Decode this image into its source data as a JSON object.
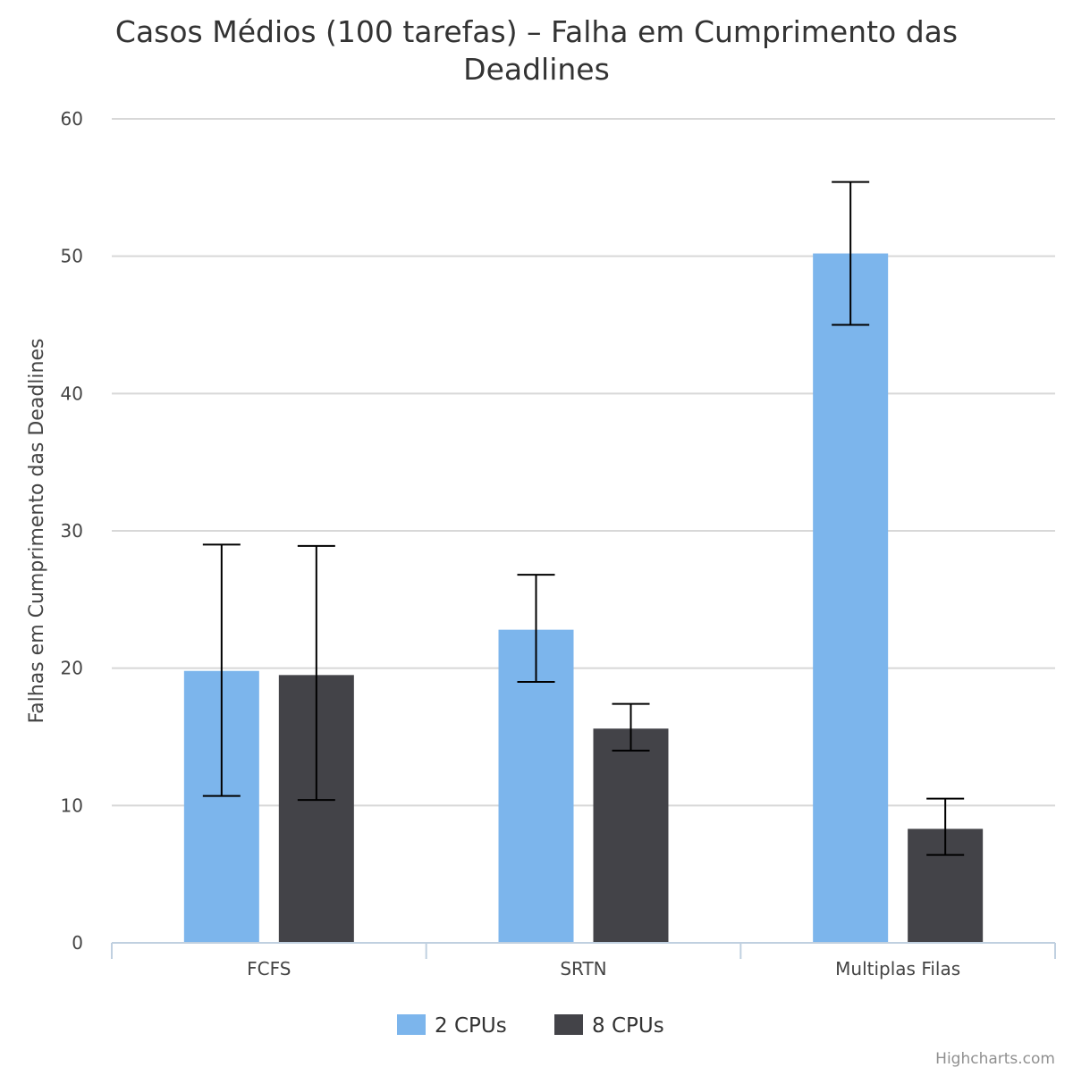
{
  "chart_data": {
    "type": "bar",
    "title": "Casos Médios (100 tarefas) – Falha em Cumprimento das Deadlines",
    "title_lines": [
      "Casos Médios (100 tarefas) – Falha em Cumprimento das",
      "Deadlines"
    ],
    "ylabel": "Falhas em Cumprimento das Deadlines",
    "xlabel": "",
    "ylim": [
      0,
      60
    ],
    "yticks": [
      0,
      10,
      20,
      30,
      40,
      50,
      60
    ],
    "categories": [
      "FCFS",
      "SRTN",
      "Multiplas Filas"
    ],
    "series": [
      {
        "name": "2 CPUs",
        "color": "#7cb5ec",
        "values": [
          19.8,
          22.8,
          50.2
        ],
        "error_low": [
          10.7,
          19.0,
          45.0
        ],
        "error_high": [
          29.0,
          26.8,
          55.4
        ]
      },
      {
        "name": "8 CPUs",
        "color": "#434348",
        "values": [
          19.5,
          15.6,
          8.3
        ],
        "error_low": [
          10.4,
          14.0,
          6.4
        ],
        "error_high": [
          28.9,
          17.4,
          10.5
        ]
      }
    ],
    "grid": true,
    "legend_position": "bottom-center",
    "credits": "Highcharts.com"
  }
}
